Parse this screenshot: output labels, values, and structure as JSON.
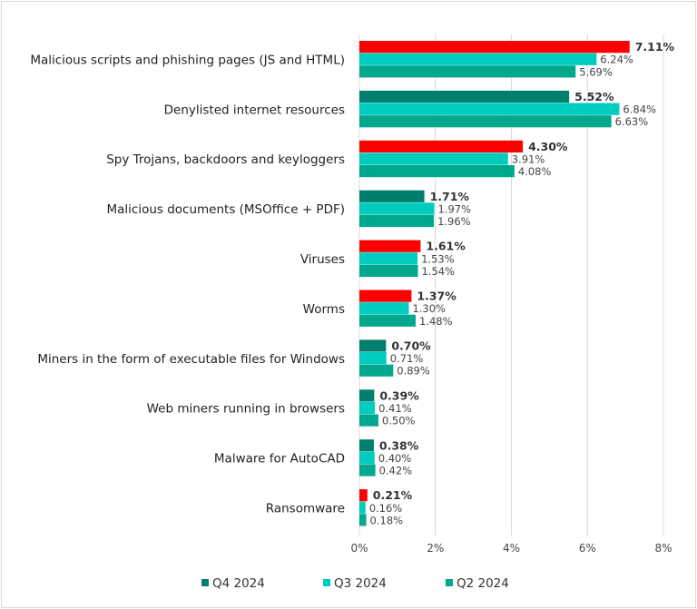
{
  "chart_data": {
    "type": "bar",
    "orientation": "horizontal",
    "categories": [
      "Malicious scripts and phishing pages (JS and HTML)",
      "Denylisted internet resources",
      "Spy Trojans, backdoors and keyloggers",
      "Malicious documents (MSOffice + PDF)",
      "Viruses",
      "Worms",
      "Miners in the form of executable files for Windows",
      "Web miners running in browsers",
      "Malware for AutoCAD",
      "Ransomware"
    ],
    "series": [
      {
        "name": "Q4 2024",
        "color": "#007f6e",
        "increase_color": "#ff0000",
        "values": [
          7.11,
          5.52,
          4.3,
          1.71,
          1.61,
          1.37,
          0.7,
          0.39,
          0.38,
          0.21
        ],
        "labels": [
          "7.11%",
          "5.52%",
          "4.30%",
          "1.71%",
          "1.61%",
          "1.37%",
          "0.70%",
          "0.39%",
          "0.38%",
          "0.21%"
        ]
      },
      {
        "name": "Q3 2024",
        "color": "#00ccbe",
        "values": [
          6.24,
          6.84,
          3.91,
          1.97,
          1.53,
          1.3,
          0.71,
          0.41,
          0.4,
          0.16
        ],
        "labels": [
          "6.24%",
          "6.84%",
          "3.91%",
          "1.97%",
          "1.53%",
          "1.30%",
          "0.71%",
          "0.41%",
          "0.40%",
          "0.16%"
        ]
      },
      {
        "name": "Q2 2024",
        "color": "#00a88e",
        "values": [
          5.69,
          6.63,
          4.08,
          1.96,
          1.54,
          1.48,
          0.89,
          0.5,
          0.42,
          0.18
        ],
        "labels": [
          "5.69%",
          "6.63%",
          "4.08%",
          "1.96%",
          "1.54%",
          "1.48%",
          "0.89%",
          "0.50%",
          "0.42%",
          "0.18%"
        ]
      }
    ],
    "xlim": [
      0,
      8
    ],
    "xticks": [
      "0%",
      "2%",
      "4%",
      "6%",
      "8%"
    ],
    "grid": true,
    "legend": "bottom"
  }
}
